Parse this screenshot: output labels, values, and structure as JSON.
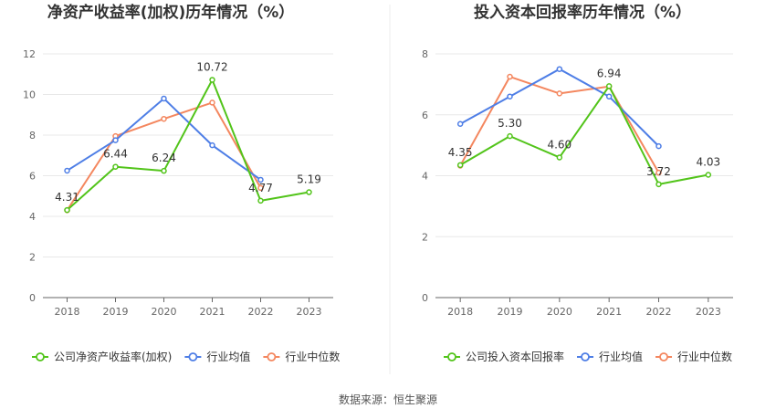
{
  "source": "数据来源：恒生聚源",
  "colors": {
    "company": "#52c41a",
    "avg": "#4e7ee6",
    "median": "#f4875f",
    "grid": "#e8e8e8",
    "axis": "#666666"
  },
  "chart_data": [
    {
      "type": "line",
      "title": "净资产收益率(加权)历年情况（%）",
      "categories": [
        "2018",
        "2019",
        "2020",
        "2021",
        "2022",
        "2023"
      ],
      "ylim": [
        0,
        12
      ],
      "yticks": [
        "0",
        "2",
        "4",
        "6",
        "8",
        "10",
        "12"
      ],
      "series": [
        {
          "name": "公司净资产收益率(加权)",
          "key": "company",
          "values": [
            4.31,
            6.44,
            6.24,
            10.72,
            4.77,
            5.19
          ],
          "labels": [
            "4.31",
            "6.44",
            "6.24",
            "10.72",
            "4.77",
            "5.19"
          ]
        },
        {
          "name": "行业均值",
          "key": "avg",
          "values": [
            6.25,
            7.75,
            9.8,
            7.5,
            5.8,
            null
          ]
        },
        {
          "name": "行业中位数",
          "key": "median",
          "values": [
            4.3,
            7.95,
            8.8,
            9.6,
            5.4,
            null
          ]
        }
      ]
    },
    {
      "type": "line",
      "title": "投入资本回报率历年情况（%）",
      "categories": [
        "2018",
        "2019",
        "2020",
        "2021",
        "2022",
        "2023"
      ],
      "ylim": [
        0,
        8
      ],
      "yticks": [
        "0",
        "2",
        "4",
        "6",
        "8"
      ],
      "series": [
        {
          "name": "公司投入资本回报率",
          "key": "company",
          "values": [
            4.35,
            5.3,
            4.6,
            6.94,
            3.72,
            4.03
          ],
          "labels": [
            "4.35",
            "5.30",
            "4.60",
            "6.94",
            "3.72",
            "4.03"
          ]
        },
        {
          "name": "行业均值",
          "key": "avg",
          "values": [
            5.7,
            6.6,
            7.5,
            6.6,
            4.97,
            null
          ]
        },
        {
          "name": "行业中位数",
          "key": "median",
          "values": [
            4.33,
            7.25,
            6.7,
            6.93,
            4.1,
            null
          ]
        }
      ]
    }
  ]
}
